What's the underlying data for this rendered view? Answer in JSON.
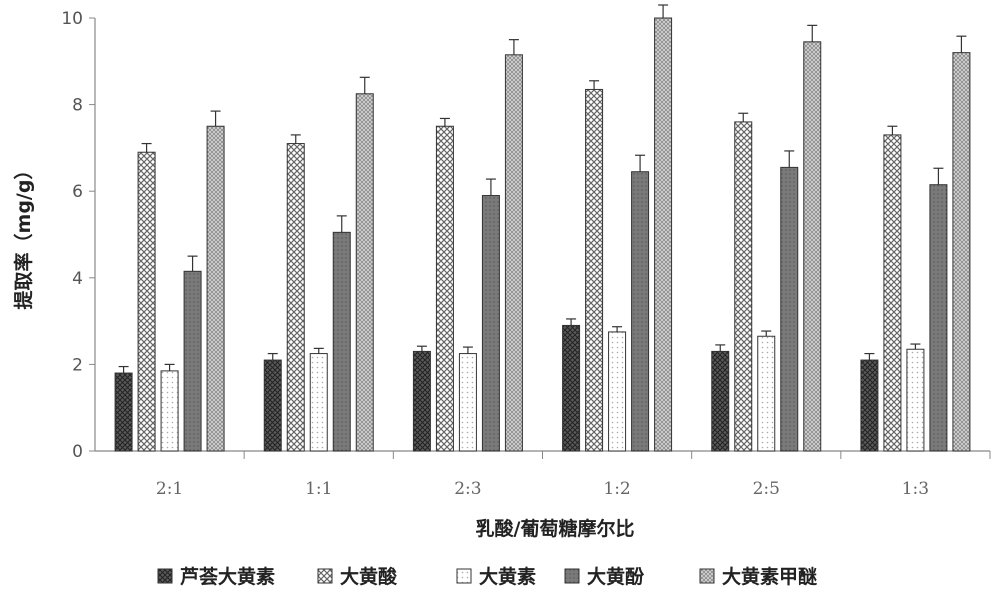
{
  "chart_data": {
    "type": "bar",
    "title": "",
    "xlabel": "乳酸/葡萄糖摩尔比",
    "ylabel": "提取率（mg/g）",
    "ylim": [
      0,
      10
    ],
    "yticks": [
      0,
      2,
      4,
      6,
      8,
      10
    ],
    "categories": [
      "2:1",
      "1:1",
      "2:3",
      "1:2",
      "2:5",
      "1:3"
    ],
    "series": [
      {
        "name": "芦荟大黄素",
        "color": "#555555",
        "pattern": "dense-dark",
        "values": [
          1.8,
          2.1,
          2.3,
          2.9,
          2.3,
          2.1
        ],
        "errors": [
          0.15,
          0.15,
          0.12,
          0.15,
          0.15,
          0.15
        ]
      },
      {
        "name": "大黄酸",
        "color": "#dddddd",
        "pattern": "crosshatch",
        "values": [
          6.9,
          7.1,
          7.5,
          8.35,
          7.6,
          7.3
        ],
        "errors": [
          0.2,
          0.2,
          0.18,
          0.2,
          0.2,
          0.2
        ]
      },
      {
        "name": "大黄素",
        "color": "#f2f2f2",
        "pattern": "light-dots",
        "values": [
          1.85,
          2.25,
          2.25,
          2.75,
          2.65,
          2.35
        ],
        "errors": [
          0.15,
          0.12,
          0.15,
          0.12,
          0.12,
          0.12
        ]
      },
      {
        "name": "大黄酚",
        "color": "#777777",
        "pattern": "solid-gray",
        "values": [
          4.15,
          5.05,
          5.9,
          6.45,
          6.55,
          6.15
        ],
        "errors": [
          0.35,
          0.38,
          0.38,
          0.38,
          0.38,
          0.38
        ]
      },
      {
        "name": "大黄素甲醚",
        "color": "#bbbbbb",
        "pattern": "fine-dots",
        "values": [
          7.5,
          8.25,
          9.15,
          10.0,
          9.45,
          9.2
        ],
        "errors": [
          0.35,
          0.38,
          0.35,
          0.3,
          0.38,
          0.38
        ]
      }
    ],
    "legend_position": "bottom",
    "grid": false
  }
}
